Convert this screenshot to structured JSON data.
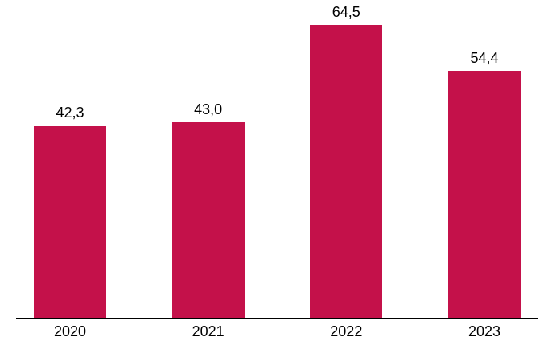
{
  "chart_data": {
    "type": "bar",
    "title": "",
    "xlabel": "",
    "ylabel": "",
    "categories": [
      "2020",
      "2021",
      "2022",
      "2023"
    ],
    "values": [
      42.3,
      43.0,
      64.5,
      54.4
    ],
    "value_labels": [
      "42,3",
      "43,0",
      "64,5",
      "54,4"
    ],
    "ylim": [
      0,
      70
    ],
    "bar_color": "#C4114A",
    "axis_color": "#000000",
    "grid": false,
    "legend_position": "none",
    "decimal_separator": ","
  }
}
